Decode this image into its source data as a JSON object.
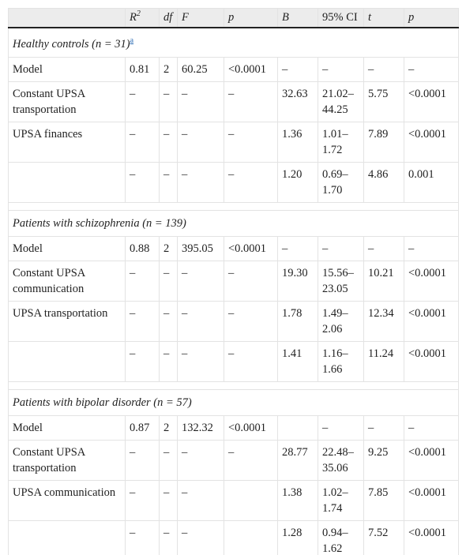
{
  "header": {
    "r2": "R",
    "r2_sup": "2",
    "df": "df",
    "f": "F",
    "p1": "p",
    "b": "B",
    "ci": "95% CI",
    "t": "t",
    "p2": "p"
  },
  "groups": [
    {
      "title": "Healthy controls (n = 31)",
      "footnote": "a",
      "rows": [
        {
          "label": " Model",
          "r2": "0.81",
          "df": "2",
          "f": "60.25",
          "p": "<0.0001",
          "b": "–",
          "ci": "–",
          "t": "–",
          "p2": "–"
        },
        {
          "label": " Constant UPSA transportation",
          "r2": "–",
          "df": "–",
          "f": "–",
          "p": "–",
          "b": "32.63",
          "ci": "21.02–44.25",
          "t": "5.75",
          "p2": "<0.0001"
        },
        {
          "label": " UPSA finances",
          "r2": "–",
          "df": "–",
          "f": "–",
          "p": "–",
          "b": "1.36",
          "ci": "1.01–1.72",
          "t": "7.89",
          "p2": "<0.0001"
        },
        {
          "label": "",
          "r2": "–",
          "df": "–",
          "f": "–",
          "p": "–",
          "b": "1.20",
          "ci": "0.69–1.70",
          "t": "4.86",
          "p2": "0.001"
        }
      ]
    },
    {
      "title": "Patients with schizophrenia (n = 139)",
      "footnote": "",
      "rows": [
        {
          "label": " Model",
          "r2": "0.88",
          "df": "2",
          "f": "395.05",
          "p": "<0.0001",
          "b": "–",
          "ci": "–",
          "t": "–",
          "p2": "–"
        },
        {
          "label": " Constant UPSA communication",
          "r2": "–",
          "df": "–",
          "f": "–",
          "p": "–",
          "b": "19.30",
          "ci": "15.56–23.05",
          "t": "10.21",
          "p2": "<0.0001"
        },
        {
          "label": " UPSA transportation",
          "r2": "–",
          "df": "–",
          "f": "–",
          "p": "–",
          "b": "1.78",
          "ci": "1.49–2.06",
          "t": "12.34",
          "p2": "<0.0001"
        },
        {
          "label": "",
          "r2": "–",
          "df": "–",
          "f": "–",
          "p": "–",
          "b": "1.41",
          "ci": "1.16–1.66",
          "t": "11.24",
          "p2": "<0.0001"
        }
      ]
    },
    {
      "title": "Patients with bipolar disorder (n = 57)",
      "footnote": "",
      "rows": [
        {
          "label": " Model",
          "r2": "0.87",
          "df": "2",
          "f": "132.32",
          "p": "<0.0001",
          "b": "",
          "ci": "–",
          "t": "–",
          "p2": "–"
        },
        {
          "label": " Constant UPSA transportation",
          "r2": "–",
          "df": "–",
          "f": "–",
          "p": "–",
          "b": "28.77",
          "ci": "22.48–35.06",
          "t": "9.25",
          "p2": "<0.0001"
        },
        {
          "label": " UPSA communication",
          "r2": "–",
          "df": "–",
          "f": "–",
          "p": "",
          "b": "1.38",
          "ci": "1.02–1.74",
          "t": "7.85",
          "p2": "<0.0001"
        },
        {
          "label": "",
          "r2": "–",
          "df": "–",
          "f": "–",
          "p": "",
          "b": "1.28",
          "ci": "0.94–1.62",
          "t": "7.52",
          "p2": "<0.0001"
        }
      ]
    }
  ]
}
